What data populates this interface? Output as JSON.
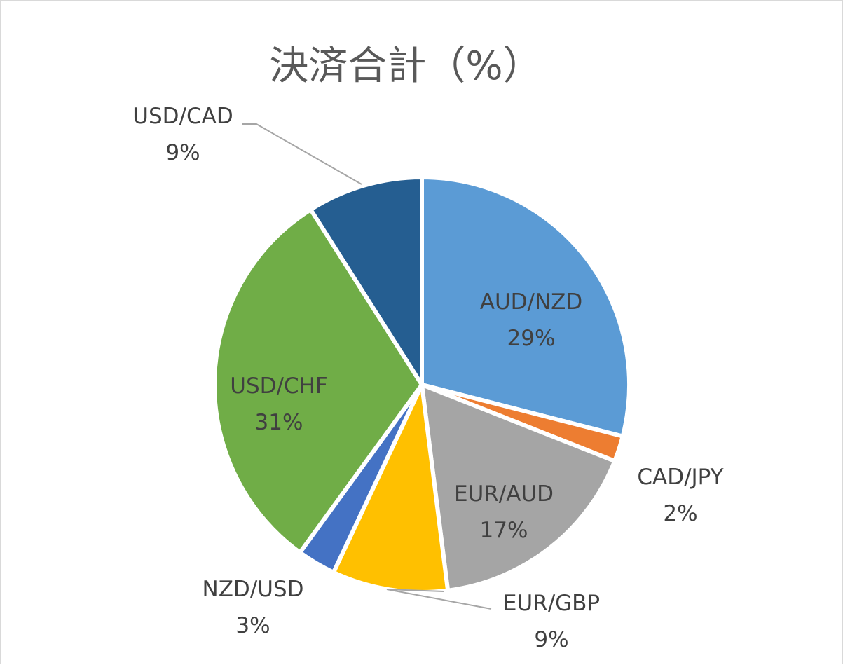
{
  "chart_data": {
    "type": "pie",
    "title": "決済合計（%）",
    "start_angle_deg": 0,
    "direction": "clockwise",
    "slice_border_color": "#ffffff",
    "slices": [
      {
        "name": "AUD/NZD",
        "value": 29,
        "value_label": "29%",
        "color": "#5b9bd5"
      },
      {
        "name": "CAD/JPY",
        "value": 2,
        "value_label": "2%",
        "color": "#ed7d31"
      },
      {
        "name": "EUR/AUD",
        "value": 17,
        "value_label": "17%",
        "color": "#a5a5a5"
      },
      {
        "name": "EUR/GBP",
        "value": 9,
        "value_label": "9%",
        "color": "#ffc000"
      },
      {
        "name": "NZD/USD",
        "value": 3,
        "value_label": "3%",
        "color": "#4472c4"
      },
      {
        "name": "USD/CHF",
        "value": 31,
        "value_label": "31%",
        "color": "#70ad47"
      },
      {
        "name": "USD/CAD",
        "value": 9,
        "value_label": "9%",
        "color": "#255e91"
      }
    ]
  }
}
